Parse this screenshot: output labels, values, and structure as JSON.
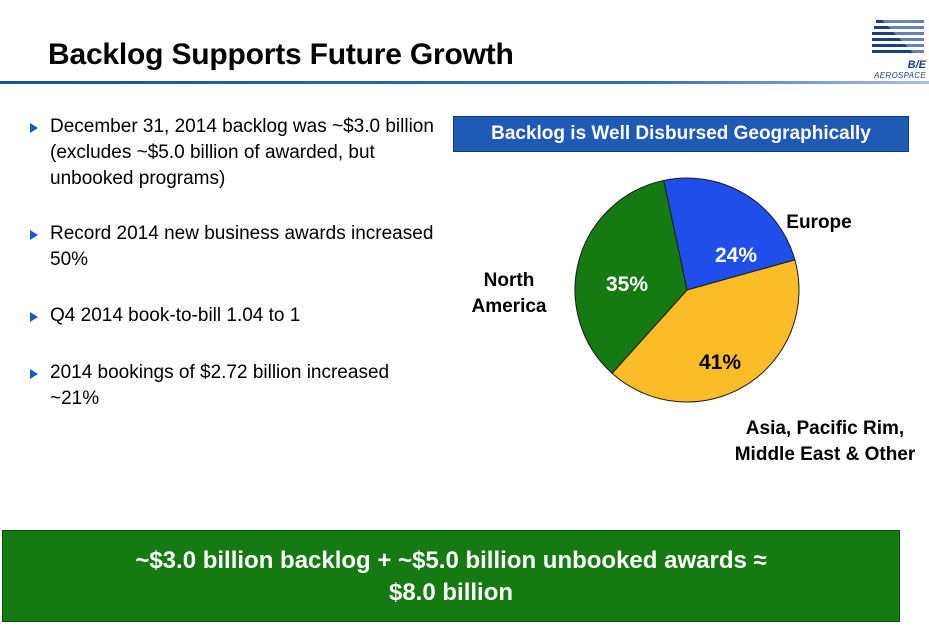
{
  "slide": {
    "title": "Backlog Supports Future Growth",
    "logo": {
      "brand": "B/E",
      "sub": "AEROSPACE"
    }
  },
  "bullets": [
    {
      "text": "December 31, 2014 backlog was ~$3.0 billion (excludes ~$5.0 billion of awarded, but unbooked programs)"
    },
    {
      "text": "Record 2014 new business awards increased 50%"
    },
    {
      "text": "Q4 2014 book-to-bill 1.04 to 1"
    },
    {
      "text": "2014 bookings of $2.72 billion increased ~21%"
    }
  ],
  "chart_data": {
    "type": "pie",
    "title": "Backlog is Well Disbursed Geographically",
    "slices": [
      {
        "label": "Europe",
        "value": 24,
        "value_label": "24%",
        "color": "#1f4fe8",
        "label_color": "#ffffff"
      },
      {
        "label": "Asia, Pacific Rim, Middle East & Other",
        "label_lines": [
          "Asia, Pacific Rim,",
          "Middle East & Other"
        ],
        "value": 41,
        "value_label": "41%",
        "color": "#fbbd27",
        "label_color": "#000000"
      },
      {
        "label": "North America",
        "label_lines": [
          "North",
          "America"
        ],
        "value": 35,
        "value_label": "35%",
        "color": "#157a12",
        "label_color": "#ffffff"
      }
    ]
  },
  "footer": {
    "line1": "~$3.0 billion backlog + ~$5.0 billion unbooked awards ≈",
    "line2": "$8.0 billion"
  },
  "colors": {
    "accent": "#1f5bb5",
    "footer_bg": "#157a12"
  }
}
